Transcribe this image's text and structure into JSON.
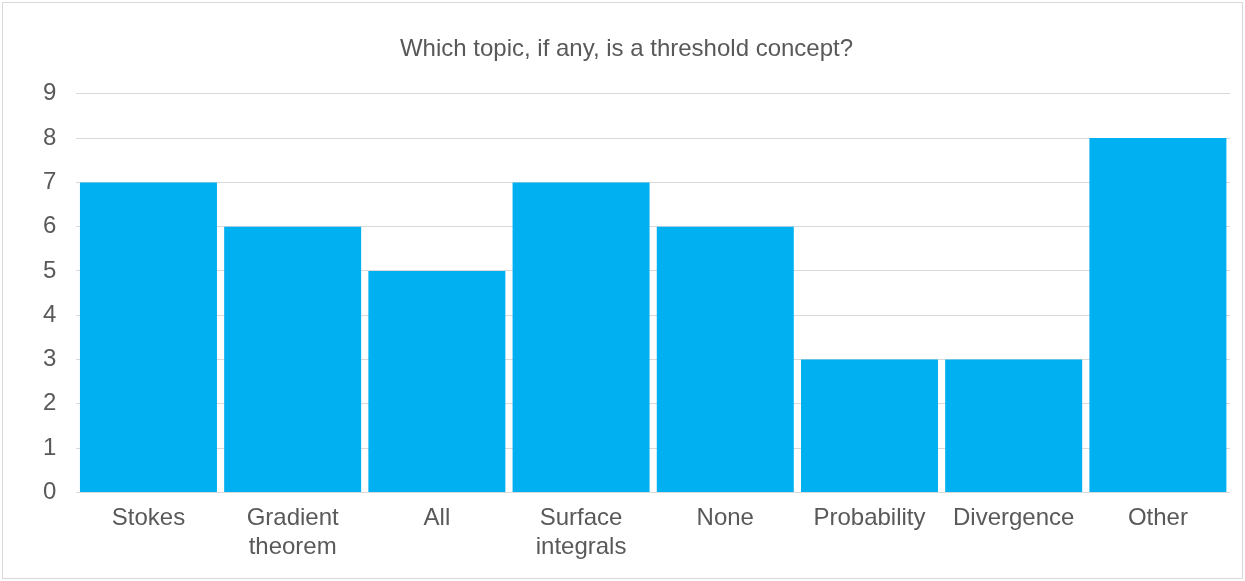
{
  "chart_data": {
    "type": "bar",
    "title": "Which topic, if any, is a threshold concept?",
    "categories": [
      "Stokes",
      "Gradient theorem",
      "All",
      "Surface integrals",
      "None",
      "Probability",
      "Divergence",
      "Other"
    ],
    "values": [
      7,
      6,
      5,
      7,
      6,
      3,
      3,
      8
    ],
    "color": "#00b0f0",
    "ylim": [
      0,
      9
    ],
    "yticks": [
      0,
      1,
      2,
      3,
      4,
      5,
      6,
      7,
      8,
      9
    ],
    "grid": "y",
    "legend": false
  }
}
